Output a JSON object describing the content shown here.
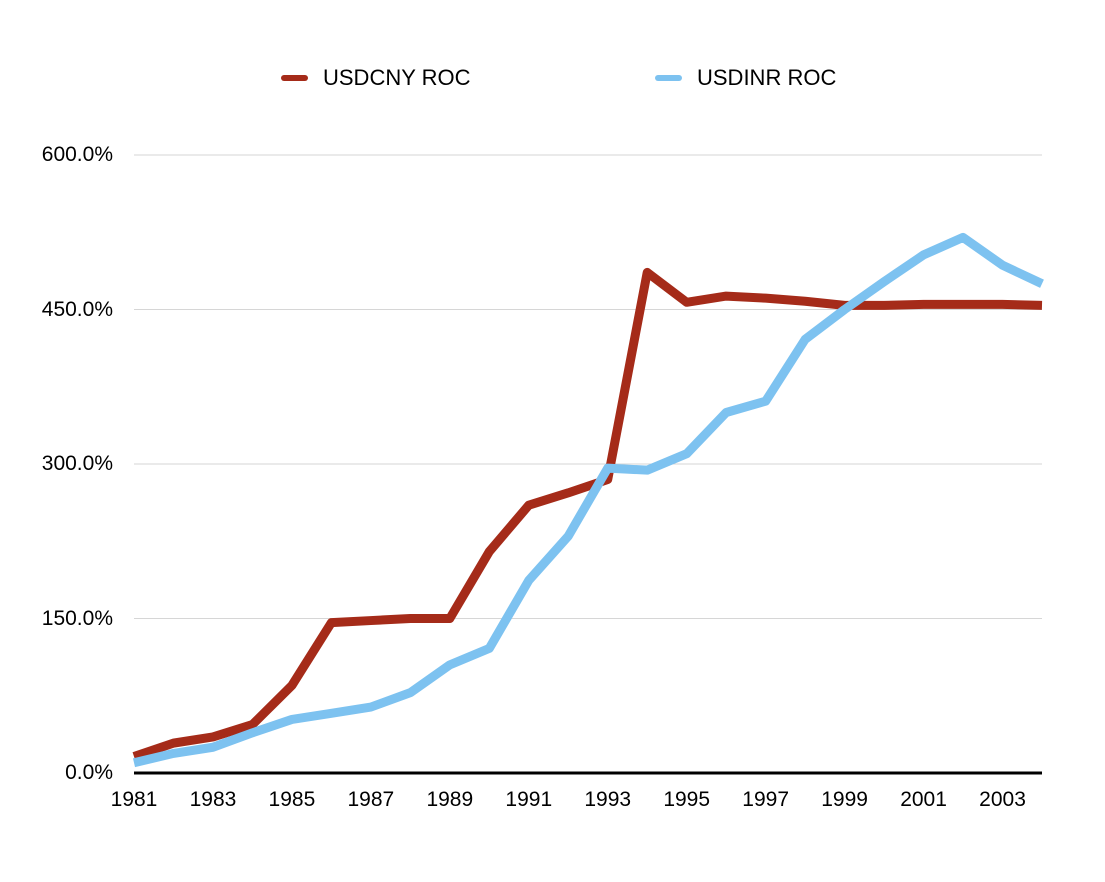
{
  "chart_data": {
    "type": "line",
    "title": "",
    "xlabel": "",
    "ylabel": "",
    "values_unit": "percent",
    "ylim": [
      0,
      600
    ],
    "grid": true,
    "legend_position": "top",
    "x": [
      1981,
      1982,
      1983,
      1984,
      1985,
      1986,
      1987,
      1988,
      1989,
      1990,
      1991,
      1992,
      1993,
      1994,
      1995,
      1996,
      1997,
      1998,
      1999,
      2000,
      2001,
      2002,
      2003,
      2004
    ],
    "x_tick_labels": [
      "1981",
      "1983",
      "1985",
      "1987",
      "1989",
      "1991",
      "1993",
      "1995",
      "1997",
      "1999",
      "2001",
      "2003"
    ],
    "y_ticks": [
      0,
      150,
      300,
      450,
      600
    ],
    "y_tick_labels": [
      "0.0%",
      "150.0%",
      "300.0%",
      "450.0%",
      "600.0%"
    ],
    "series": [
      {
        "name": "USDCNY ROC",
        "color": "#A52B19",
        "values": [
          16,
          29,
          35,
          47,
          85,
          146,
          148,
          150,
          150,
          215,
          260,
          272,
          285,
          486,
          457,
          463,
          461,
          458,
          454,
          454,
          455,
          455,
          455,
          454
        ]
      },
      {
        "name": "USDINR ROC",
        "color": "#7DC2F0",
        "values": [
          10,
          19,
          25,
          39,
          52,
          58,
          64,
          78,
          105,
          121,
          187,
          230,
          296,
          294,
          310,
          350,
          361,
          421,
          450,
          477,
          503,
          520,
          493,
          475
        ]
      }
    ]
  },
  "style_colors": {
    "gridline": "#D6D6D6",
    "axis": "#000000",
    "text": "#000000",
    "background": "#FFFFFF"
  }
}
